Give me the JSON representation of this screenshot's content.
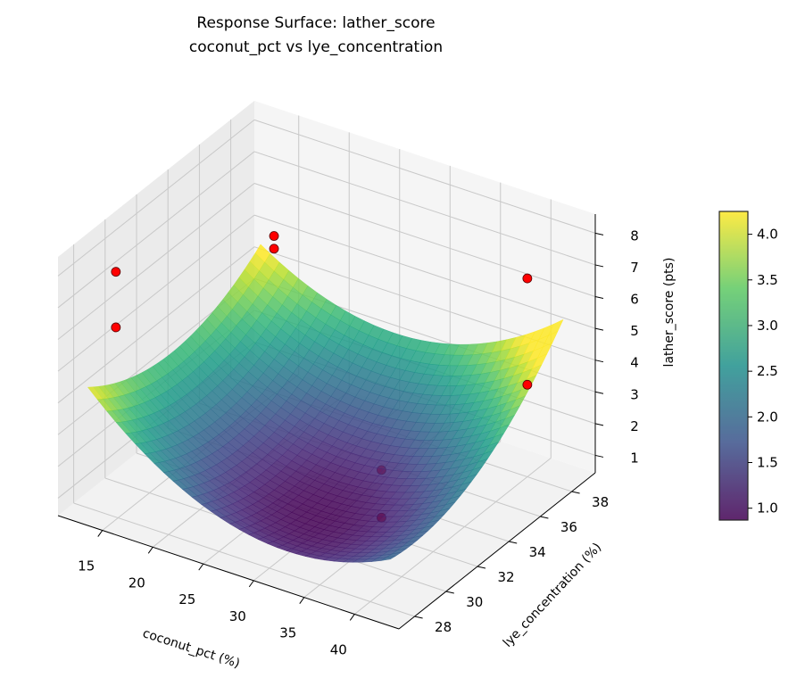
{
  "chart_data": {
    "type": "surface3d",
    "title": "Response Surface: lather_score",
    "subtitle": "coconut_pct vs lye_concentration",
    "xlabel": "coconut_pct (%)",
    "ylabel": "lye_concentration (%)",
    "zlabel": "lather_score (pts)",
    "xlim": [
      10.6,
      44.4
    ],
    "ylim": [
      27,
      39.5
    ],
    "zlim": [
      0.45,
      8.6
    ],
    "xticks": [
      15,
      20,
      25,
      30,
      35,
      40
    ],
    "yticks": [
      28,
      30,
      32,
      34,
      36,
      38
    ],
    "zticks": [
      1,
      2,
      3,
      4,
      5,
      6,
      7,
      8
    ],
    "grid": true,
    "colormap": "viridis",
    "surface": {
      "x_range": [
        12,
        42
      ],
      "y_range": [
        28,
        39
      ],
      "model": {
        "z_min": 0.87,
        "x_center": 30,
        "y_center": 31,
        "xx": 0.00788,
        "yy": 0.0364,
        "xy": 0.00924
      }
    },
    "points": [
      {
        "x": 14,
        "y": 28.5,
        "z": 7.9
      },
      {
        "x": 14,
        "y": 28.5,
        "z": 6.15
      },
      {
        "x": 18,
        "y": 36,
        "z": 6.5
      },
      {
        "x": 18,
        "y": 36,
        "z": 6.1
      },
      {
        "x": 40,
        "y": 38,
        "z": 6.7
      },
      {
        "x": 40,
        "y": 38,
        "z": 3.35
      },
      {
        "x": 38,
        "y": 30,
        "z": 3.6,
        "occluded": true
      },
      {
        "x": 38,
        "y": 30,
        "z": 2.1,
        "occluded": true
      }
    ],
    "point_color": "#ff0000",
    "colorbar": {
      "clim": [
        0.87,
        4.25
      ],
      "ticks": [
        "1.0",
        "1.5",
        "2.0",
        "2.5",
        "3.0",
        "3.5",
        "4.0"
      ],
      "position": "right"
    }
  }
}
